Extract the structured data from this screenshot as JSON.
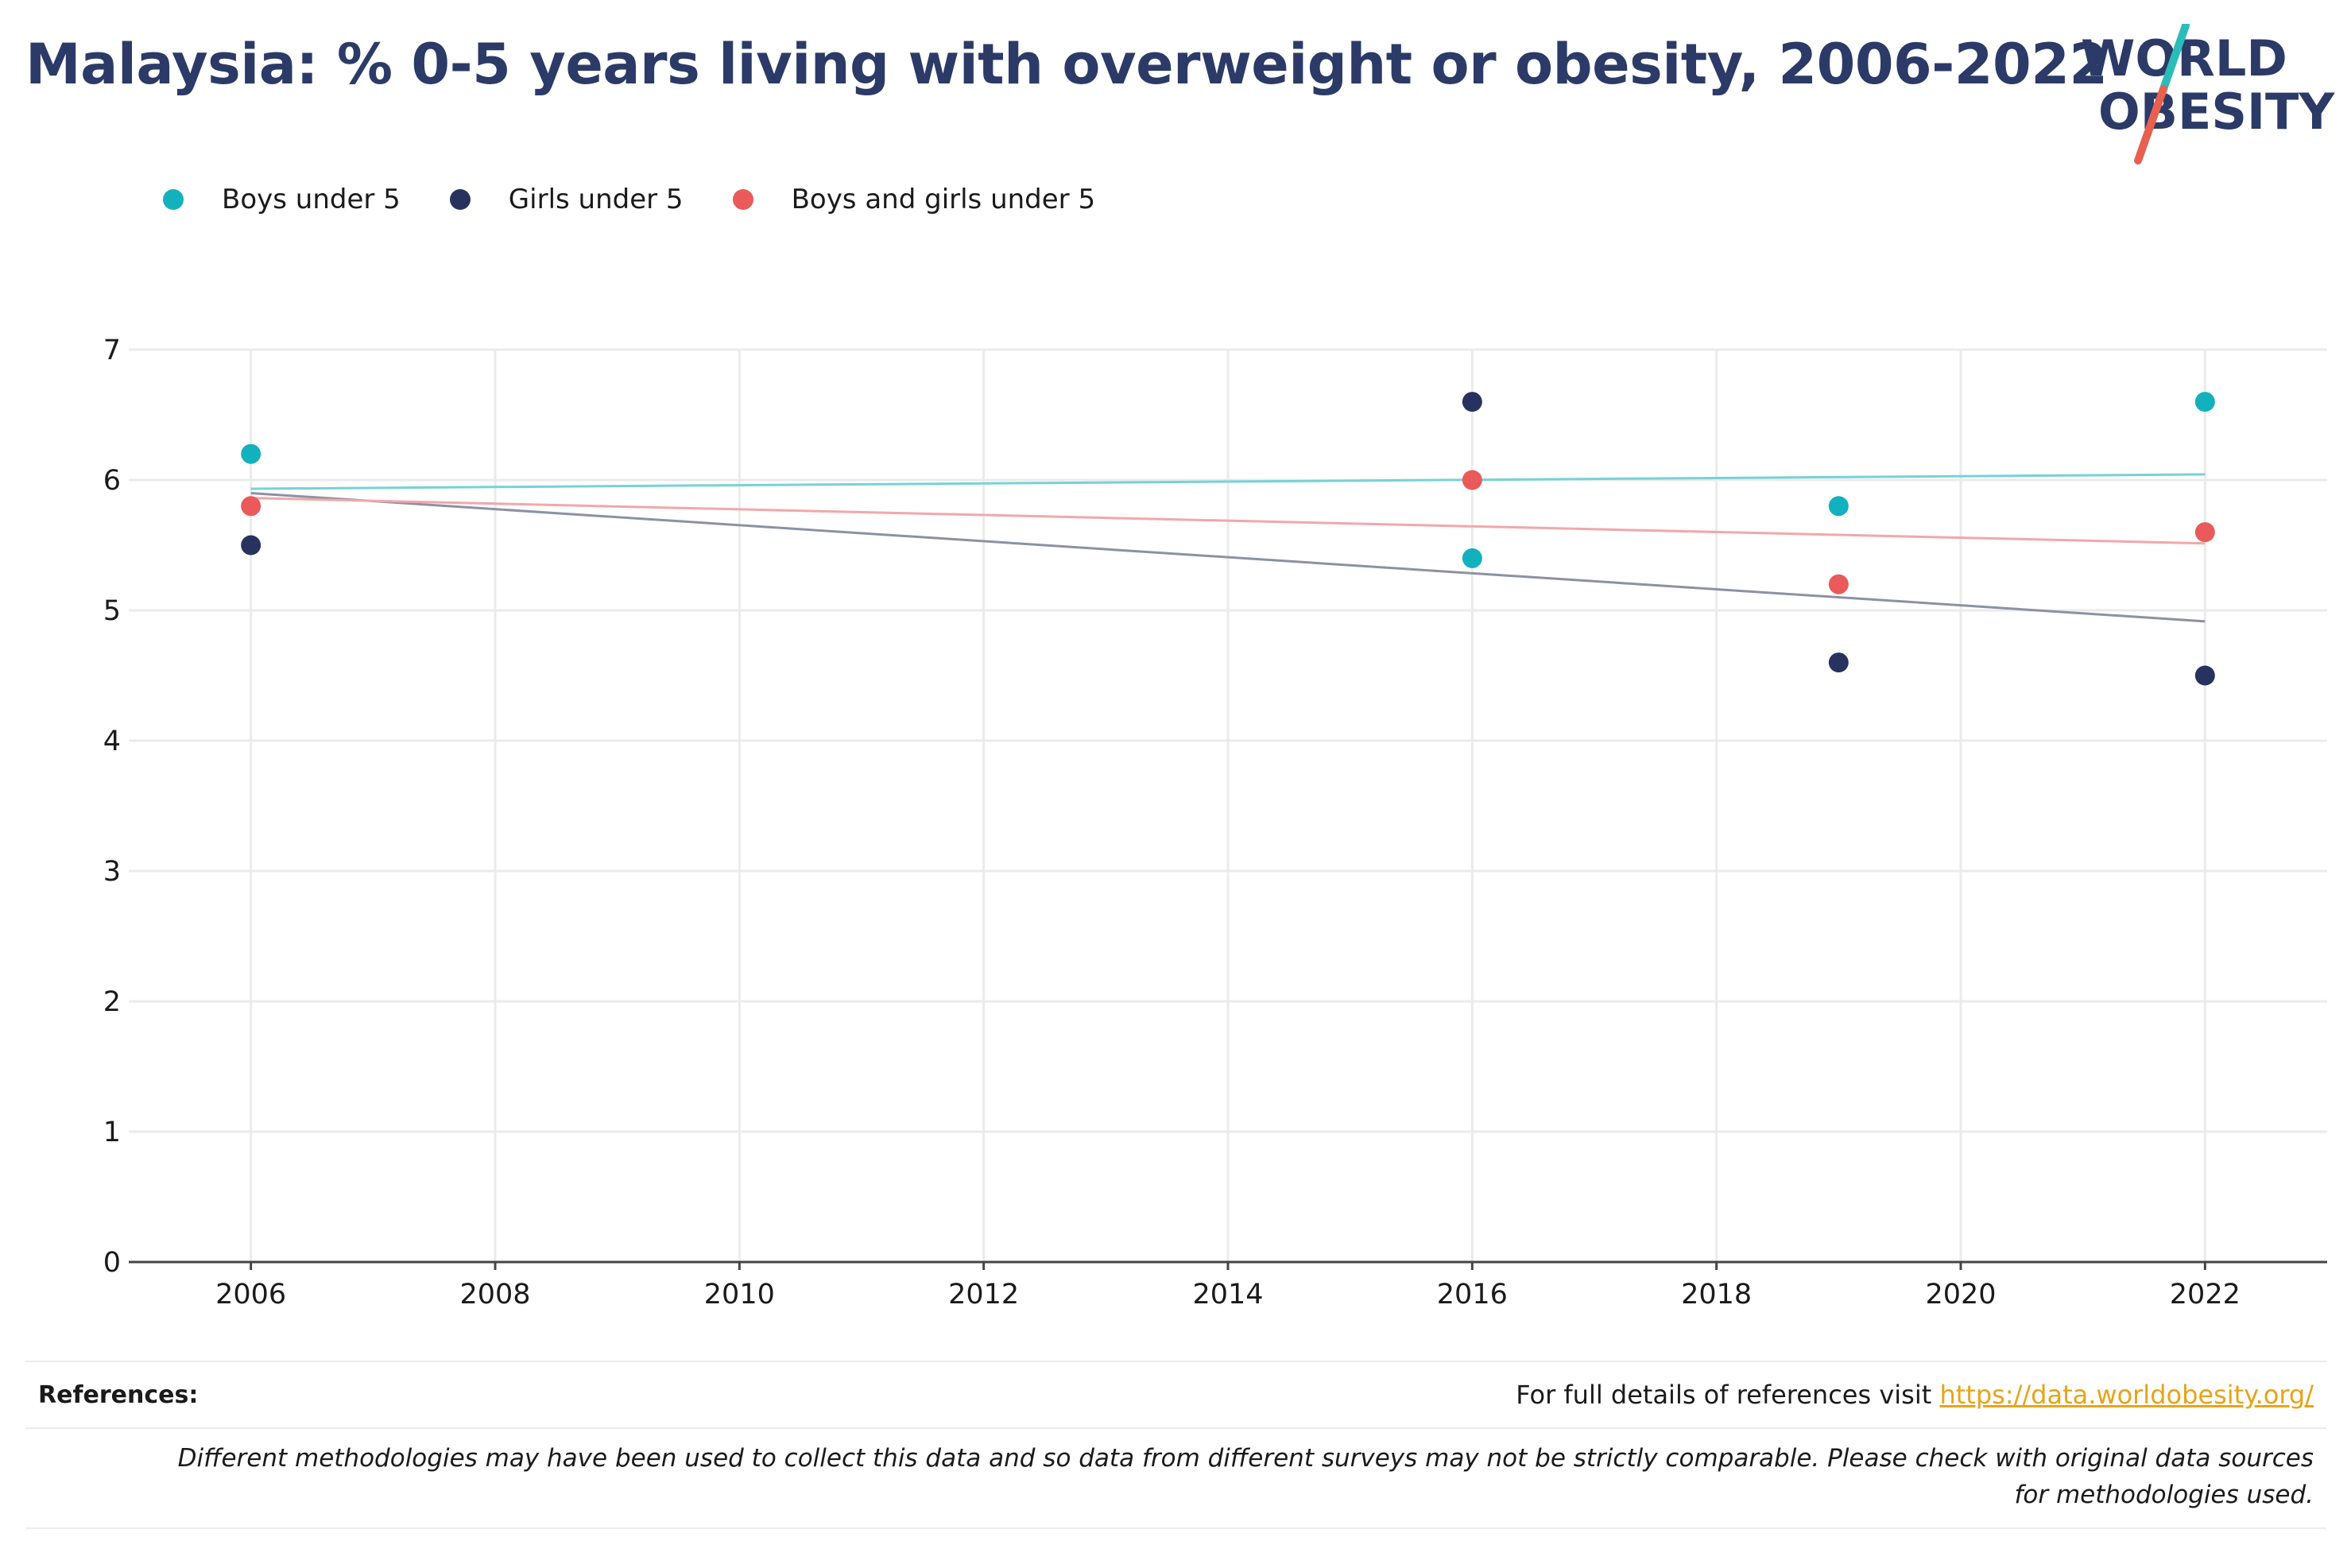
{
  "header": {
    "title": "Malaysia: % 0-5 years living with overweight or obesity, 2006-2022"
  },
  "logo": {
    "line1": "WORLD",
    "line2": "OBESITY",
    "colors": {
      "text": "#2b3a67",
      "slash_teal": "#2bbcb9",
      "slash_coral": "#e8604f"
    }
  },
  "chart_data": {
    "type": "scatter",
    "title": "Malaysia: % 0-5 years living with overweight or obesity, 2006-2022",
    "xlabel": "",
    "ylabel": "",
    "xlim": [
      2005,
      2023
    ],
    "ylim": [
      0,
      7
    ],
    "x_ticks": [
      2006,
      2008,
      2010,
      2012,
      2014,
      2016,
      2018,
      2020,
      2022
    ],
    "y_ticks": [
      0,
      1,
      2,
      3,
      4,
      5,
      6,
      7
    ],
    "grid": true,
    "legend": "top-left",
    "series": [
      {
        "name": "Boys under 5",
        "color": "#13b1bd",
        "trend_color": "#76d2d6",
        "points": [
          {
            "x": 2006,
            "y": 6.2
          },
          {
            "x": 2016,
            "y": 5.4
          },
          {
            "x": 2019,
            "y": 5.8
          },
          {
            "x": 2022,
            "y": 6.6
          }
        ]
      },
      {
        "name": "Girls under 5",
        "color": "#27325f",
        "trend_color": "#8c91a3",
        "points": [
          {
            "x": 2006,
            "y": 5.5
          },
          {
            "x": 2016,
            "y": 6.6
          },
          {
            "x": 2019,
            "y": 4.6
          },
          {
            "x": 2022,
            "y": 4.5
          }
        ]
      },
      {
        "name": "Boys and girls under 5",
        "color": "#ea5a5a",
        "trend_color": "#f2a7aa",
        "points": [
          {
            "x": 2006,
            "y": 5.8
          },
          {
            "x": 2016,
            "y": 6.0
          },
          {
            "x": 2019,
            "y": 5.2
          },
          {
            "x": 2022,
            "y": 5.6
          }
        ]
      }
    ]
  },
  "footer": {
    "references_label": "References:",
    "references_text": "For full details of references visit",
    "references_link": "https://data.worldobesity.org/",
    "link_color": "#e8a317",
    "disclaimer": "Different methodologies may have been used to collect this data and so data from different surveys may not be strictly comparable. Please check with original data sources for methodologies used."
  }
}
